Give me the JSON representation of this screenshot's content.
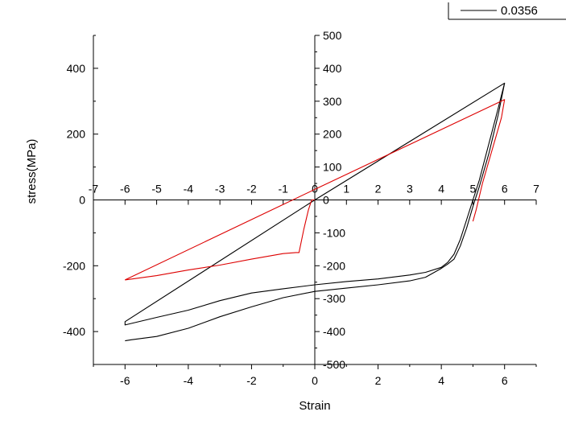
{
  "chart_data": {
    "type": "line",
    "xlabel": "Strain",
    "ylabel": "stress(MPa)",
    "xlim": [
      -7,
      7
    ],
    "ylim": [
      -500,
      500
    ],
    "grid": false,
    "legend_placement": "top-right",
    "legend": [
      {
        "name": "0.0356",
        "color": "#000000"
      }
    ],
    "bottom_axis": {
      "ticks": [
        -6,
        -4,
        -2,
        0,
        2,
        4,
        6
      ],
      "labels": [
        "-6",
        "-4",
        "-2",
        "0",
        "2",
        "4",
        "6"
      ]
    },
    "middle_axis": {
      "ticks": [
        -7,
        -6,
        -5,
        -4,
        -3,
        -2,
        -1,
        0,
        1,
        2,
        3,
        4,
        5,
        6,
        7
      ],
      "labels": [
        "-7",
        "-6",
        "-5",
        "-4",
        "-3",
        "-2",
        "-1",
        "0",
        "1",
        "2",
        "3",
        "4",
        "5",
        "6",
        "7"
      ]
    },
    "left_axis": {
      "ticks": [
        -400,
        -200,
        0,
        200,
        400
      ],
      "labels": [
        "-400",
        "-200",
        "0",
        "200",
        "400"
      ]
    },
    "right_axis": {
      "ticks": [
        -500,
        -400,
        -300,
        -200,
        -100,
        0,
        100,
        200,
        300,
        400,
        500
      ],
      "labels": [
        "-500",
        "-400",
        "-300",
        "-200",
        "-100",
        "0",
        "100",
        "200",
        "300",
        "400",
        "500"
      ]
    },
    "series": [
      {
        "color": "#000000",
        "points": [
          [
            0,
            0
          ],
          [
            6,
            355
          ],
          [
            5.8,
            280
          ],
          [
            5.5,
            170
          ],
          [
            5.2,
            60
          ],
          [
            5,
            0
          ],
          [
            4.8,
            -60
          ],
          [
            4.6,
            -120
          ],
          [
            4.4,
            -165
          ],
          [
            4.2,
            -190
          ],
          [
            4,
            -205
          ],
          [
            3.5,
            -220
          ],
          [
            3,
            -228
          ],
          [
            2,
            -240
          ],
          [
            1,
            -248
          ],
          [
            0,
            -258
          ],
          [
            -1,
            -270
          ],
          [
            -2,
            -283
          ],
          [
            -3,
            -306
          ],
          [
            -4,
            -335
          ],
          [
            -5,
            -357
          ],
          [
            -6,
            -380
          ],
          [
            -6,
            -370
          ],
          [
            0,
            0
          ]
        ]
      },
      {
        "color": "#000000",
        "points": [
          [
            6,
            355
          ],
          [
            5.8,
            260
          ],
          [
            5.5,
            140
          ],
          [
            5.2,
            40
          ],
          [
            5,
            -20
          ],
          [
            4.8,
            -85
          ],
          [
            4.6,
            -140
          ],
          [
            4.4,
            -180
          ],
          [
            4.2,
            -195
          ],
          [
            4,
            -208
          ],
          [
            3.5,
            -235
          ],
          [
            3,
            -246
          ],
          [
            2,
            -258
          ],
          [
            1,
            -268
          ],
          [
            0,
            -278
          ],
          [
            -1,
            -297
          ],
          [
            -2,
            -325
          ],
          [
            -3,
            -355
          ],
          [
            -4,
            -390
          ],
          [
            -5,
            -415
          ],
          [
            -5.8,
            -425
          ],
          [
            -6,
            -428
          ]
        ]
      },
      {
        "color": "#dd0000",
        "points": [
          [
            -6,
            -243
          ],
          [
            0,
            32
          ],
          [
            6,
            305
          ],
          [
            5.9,
            250
          ],
          [
            5.6,
            150
          ],
          [
            5.3,
            50
          ],
          [
            5.1,
            -30
          ],
          [
            5,
            -65
          ]
        ]
      },
      {
        "color": "#dd0000",
        "points": [
          [
            -6,
            -243
          ],
          [
            -5,
            -230
          ],
          [
            -4,
            -213
          ],
          [
            -3,
            -198
          ],
          [
            -2,
            -180
          ],
          [
            -1,
            -163
          ],
          [
            -0.6,
            -160
          ],
          [
            -0.5,
            -160
          ],
          [
            -0.35,
            -90
          ],
          [
            -0.2,
            -30
          ],
          [
            -0.1,
            0
          ],
          [
            0,
            0
          ]
        ]
      }
    ]
  }
}
